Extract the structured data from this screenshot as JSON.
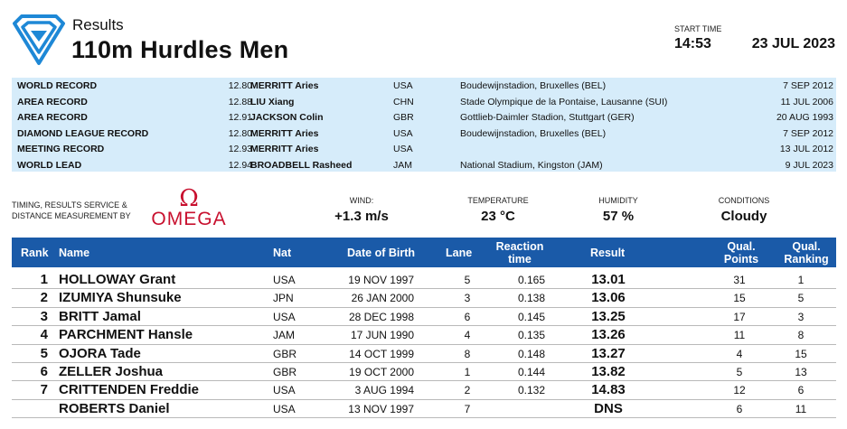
{
  "header": {
    "subtitle": "Results",
    "title": "110m Hurdles Men",
    "start_time_label": "START TIME",
    "start_time": "14:53",
    "date": "23 JUL 2023"
  },
  "records": [
    {
      "type": "WORLD RECORD",
      "mark": "12.80",
      "name": "MERRITT Aries",
      "nat": "USA",
      "venue": "Boudewijnstadion, Bruxelles (BEL)",
      "date": "7 SEP 2012"
    },
    {
      "type": "AREA RECORD",
      "mark": "12.88",
      "name": "LIU Xiang",
      "nat": "CHN",
      "venue": "Stade Olympique de la Pontaise, Lausanne (SUI)",
      "date": "11 JUL 2006"
    },
    {
      "type": "AREA RECORD",
      "mark": "12.91",
      "name": "JACKSON Colin",
      "nat": "GBR",
      "venue": "Gottlieb-Daimler Stadion, Stuttgart (GER)",
      "date": "20 AUG 1993"
    },
    {
      "type": "DIAMOND LEAGUE RECORD",
      "mark": "12.80",
      "name": "MERRITT Aries",
      "nat": "USA",
      "venue": "Boudewijnstadion, Bruxelles (BEL)",
      "date": "7 SEP 2012"
    },
    {
      "type": "MEETING RECORD",
      "mark": "12.93",
      "name": "MERRITT Aries",
      "nat": "USA",
      "venue": "",
      "date": "13 JUL 2012"
    },
    {
      "type": "WORLD LEAD",
      "mark": "12.94",
      "name": "BROADBELL Rasheed",
      "nat": "JAM",
      "venue": "National Stadium, Kingston (JAM)",
      "date": "9 JUL 2023"
    }
  ],
  "timing": {
    "line1": "TIMING, RESULTS SERVICE &",
    "line2": "DISTANCE MEASUREMENT BY",
    "brand_symbol": "Ω",
    "brand": "OMEGA"
  },
  "conditions": [
    {
      "label": "WIND:",
      "value": "+1.3 m/s"
    },
    {
      "label": "TEMPERATURE",
      "value": "23 °C"
    },
    {
      "label": "HUMIDITY",
      "value": "57 %"
    },
    {
      "label": "CONDITIONS",
      "value": "Cloudy"
    }
  ],
  "table": {
    "headers": {
      "rank": "Rank",
      "name": "Name",
      "nat": "Nat",
      "dob": "Date of Birth",
      "lane": "Lane",
      "reaction_1": "Reaction",
      "reaction_2": "time",
      "result": "Result",
      "points_1": "Qual.",
      "points_2": "Points",
      "qrank_1": "Qual.",
      "qrank_2": "Ranking"
    },
    "rows": [
      {
        "rank": "1",
        "name": "HOLLOWAY Grant",
        "nat": "USA",
        "dob": "19 NOV 1997",
        "lane": "5",
        "reaction": "0.165",
        "result": "13.01",
        "points": "31",
        "qrank": "1"
      },
      {
        "rank": "2",
        "name": "IZUMIYA Shunsuke",
        "nat": "JPN",
        "dob": "26 JAN 2000",
        "lane": "3",
        "reaction": "0.138",
        "result": "13.06",
        "points": "15",
        "qrank": "5"
      },
      {
        "rank": "3",
        "name": "BRITT Jamal",
        "nat": "USA",
        "dob": "28 DEC 1998",
        "lane": "6",
        "reaction": "0.145",
        "result": "13.25",
        "points": "17",
        "qrank": "3"
      },
      {
        "rank": "4",
        "name": "PARCHMENT Hansle",
        "nat": "JAM",
        "dob": "17 JUN 1990",
        "lane": "4",
        "reaction": "0.135",
        "result": "13.26",
        "points": "11",
        "qrank": "8"
      },
      {
        "rank": "5",
        "name": "OJORA Tade",
        "nat": "GBR",
        "dob": "14 OCT 1999",
        "lane": "8",
        "reaction": "0.148",
        "result": "13.27",
        "points": "4",
        "qrank": "15"
      },
      {
        "rank": "6",
        "name": "ZELLER Joshua",
        "nat": "GBR",
        "dob": "19 OCT 2000",
        "lane": "1",
        "reaction": "0.144",
        "result": "13.82",
        "points": "5",
        "qrank": "13"
      },
      {
        "rank": "7",
        "name": "CRITTENDEN Freddie",
        "nat": "USA",
        "dob": "3 AUG 1994",
        "lane": "2",
        "reaction": "0.132",
        "result": "14.83",
        "points": "12",
        "qrank": "6"
      },
      {
        "rank": "",
        "name": "ROBERTS Daniel",
        "nat": "USA",
        "dob": "13 NOV 1997",
        "lane": "7",
        "reaction": "",
        "result": "DNS",
        "points": "6",
        "qrank": "11"
      }
    ]
  },
  "colors": {
    "header_blue": "#1a5aa8",
    "record_bg": "#d6ecfa",
    "omega_red": "#c8102e",
    "logo_blue": "#1e88d6"
  },
  "icons": {
    "logo": "diamond-league-logo-icon"
  }
}
